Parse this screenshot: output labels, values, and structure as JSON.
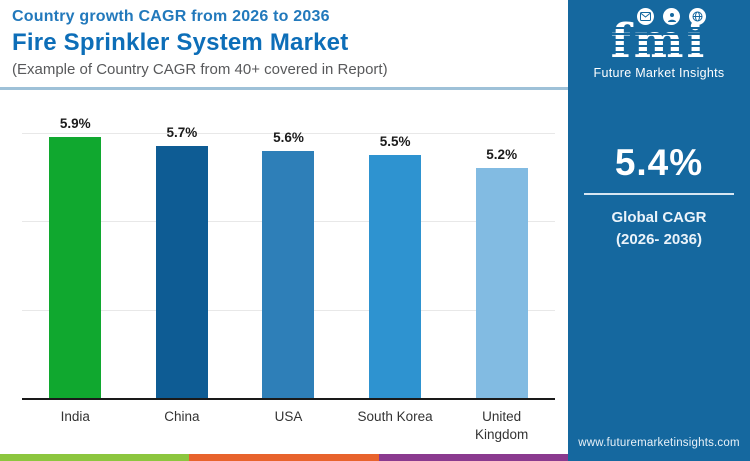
{
  "header": {
    "kicker": "Country growth CAGR from 2026 to 2036",
    "title": "Fire Sprinkler System Market",
    "subtitle": "(Example of Country CAGR from 40+ covered in Report)"
  },
  "chart_data": {
    "type": "bar",
    "categories": [
      "India",
      "China",
      "USA",
      "South Korea",
      "United Kingdom"
    ],
    "values": [
      5.9,
      5.7,
      5.6,
      5.5,
      5.2
    ],
    "value_labels": [
      "5.9%",
      "5.7%",
      "5.6%",
      "5.5%",
      "5.2%"
    ],
    "bar_colors": [
      "#10A82F",
      "#0E5C94",
      "#2E7FB8",
      "#2E93D0",
      "#82BBE2"
    ],
    "title": "Country growth CAGR from 2026 to 2036",
    "xlabel": "",
    "ylabel": "",
    "ylim": [
      0,
      6
    ],
    "gridline_values": [
      2,
      4,
      6
    ],
    "grid": true,
    "y_axis_labels_visible": false,
    "legend": "none"
  },
  "side_panel": {
    "background_color": "#15689F",
    "logo": {
      "text": "fmi",
      "tagline": "Future Market Insights",
      "icons": [
        "mail-icon",
        "person-icon",
        "globe-icon"
      ]
    },
    "highlight": {
      "value": "5.4%",
      "label_line1": "Global CAGR",
      "label_line2": "(2026- 2036)"
    },
    "website": "www.futuremarketinsights.com"
  },
  "footer_stripe": {
    "colors": [
      "#8CC63E",
      "#E8632C",
      "#8A3A8F"
    ]
  }
}
